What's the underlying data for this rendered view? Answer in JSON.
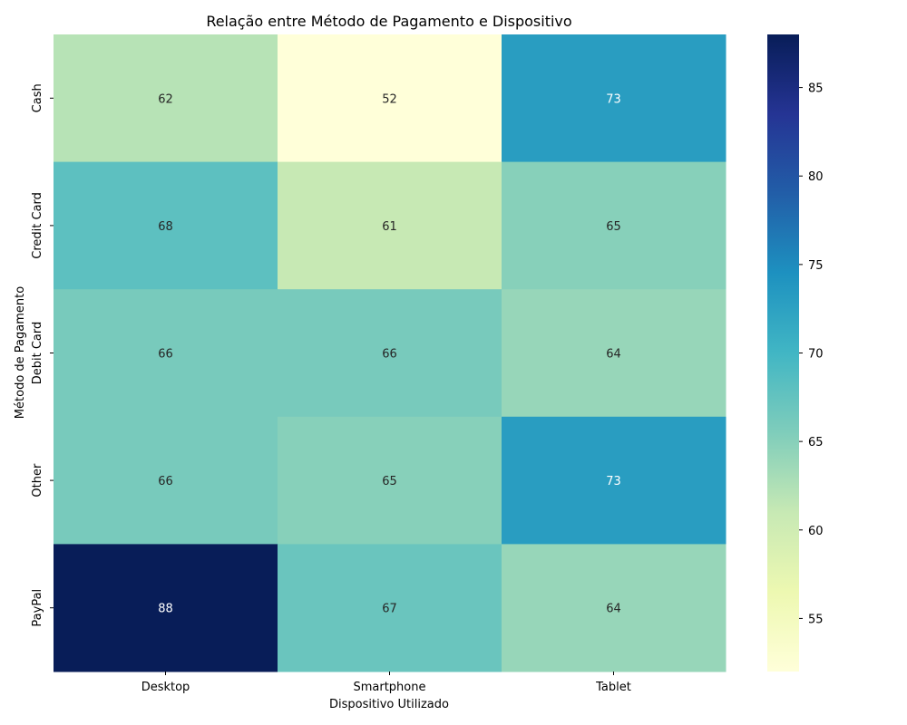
{
  "chart_data": {
    "type": "heatmap",
    "title": "Relação entre Método de Pagamento e Dispositivo",
    "xlabel": "Dispositivo Utilizado",
    "ylabel": "Método de Pagamento",
    "x_categories": [
      "Desktop",
      "Smartphone",
      "Tablet"
    ],
    "y_categories": [
      "Cash",
      "Credit Card",
      "Debit Card",
      "Other",
      "PayPal"
    ],
    "values": [
      [
        62,
        52,
        73
      ],
      [
        68,
        61,
        65
      ],
      [
        66,
        66,
        64
      ],
      [
        66,
        65,
        73
      ],
      [
        88,
        67,
        64
      ]
    ],
    "colorbar": {
      "colormap": "YlGnBu",
      "vmin": 52,
      "vmax": 88,
      "ticks": [
        55,
        60,
        65,
        70,
        75,
        80,
        85
      ]
    },
    "annotations": true,
    "colormap_stops": [
      "#ffffd9",
      "#edf8b1",
      "#c7e9b4",
      "#7fcdbb",
      "#41b6c4",
      "#1d91c0",
      "#225ea8",
      "#253494",
      "#081d58"
    ]
  }
}
